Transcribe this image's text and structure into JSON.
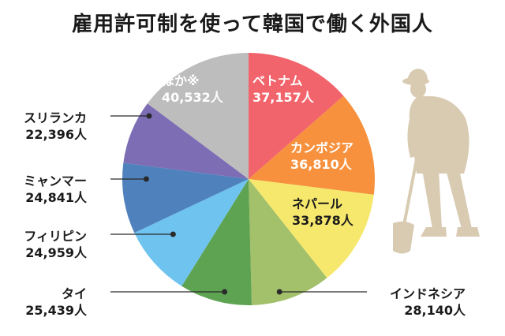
{
  "chart_data": {
    "type": "pie",
    "title": "雇用許可制を使って韓国で働く外国人",
    "slices": [
      {
        "label": "ベトナム",
        "value_text": "37,157人",
        "value": 37157,
        "color": "#f2646b"
      },
      {
        "label": "カンボジア",
        "value_text": "36,810人",
        "value": 36810,
        "color": "#f7913d"
      },
      {
        "label": "ネパール",
        "value_text": "33,878人",
        "value": 33878,
        "color": "#f6e86d"
      },
      {
        "label": "インドネシア",
        "value_text": "28,140人",
        "value": 28140,
        "color": "#a3c06a"
      },
      {
        "label": "タイ",
        "value_text": "25,439人",
        "value": 25439,
        "color": "#5ea352"
      },
      {
        "label": "フィリピン",
        "value_text": "24,959人",
        "value": 24959,
        "color": "#6ec3ef"
      },
      {
        "label": "ミャンマー",
        "value_text": "24,841人",
        "value": 24841,
        "color": "#4f82bd"
      },
      {
        "label": "スリランカ",
        "value_text": "22,396人",
        "value": 22396,
        "color": "#7c6db4"
      },
      {
        "label": "ほか※",
        "value_text": "40,532人",
        "value": 40532,
        "color": "#bdbdbd"
      }
    ]
  },
  "colors": {
    "title": "#1a1a1a",
    "label_text": "#1a1a1a",
    "inside_label_text": "#ffffff",
    "leader_line": "#2a2a2a",
    "worker_silhouette": "#d8cbb2"
  },
  "icon": "worker-with-shovel-icon"
}
